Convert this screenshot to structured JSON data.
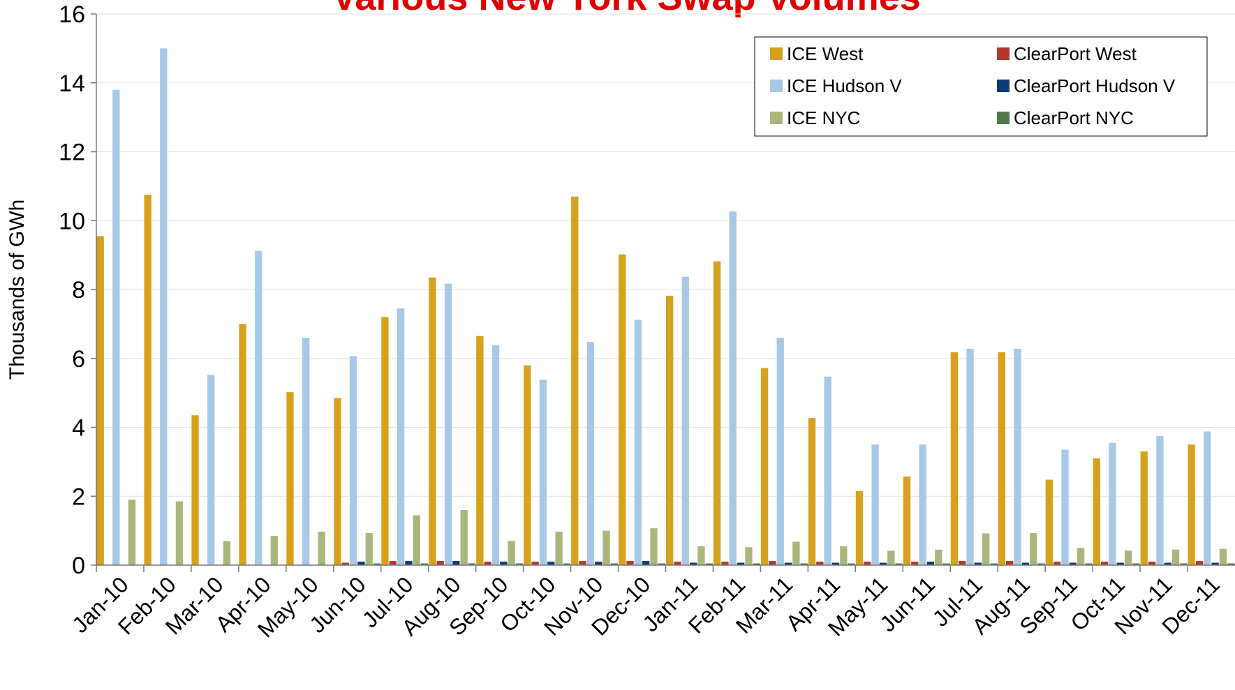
{
  "chart_data": {
    "type": "bar",
    "title": "Various New York Swap Volumes",
    "y_label": "Thousands of GWh",
    "categories": [
      "Jan-10",
      "Feb-10",
      "Mar-10",
      "Apr-10",
      "May-10",
      "Jun-10",
      "Jul-10",
      "Aug-10",
      "Sep-10",
      "Oct-10",
      "Nov-10",
      "Dec-10",
      "Jan-11",
      "Feb-11",
      "Mar-11",
      "Apr-11",
      "May-11",
      "Jun-11",
      "Jul-11",
      "Aug-11",
      "Sep-11",
      "Oct-11",
      "Nov-11",
      "Dec-11"
    ],
    "series": [
      {
        "name": "ICE West",
        "color": "#D6A11C",
        "values": [
          9.55,
          10.75,
          4.35,
          7.0,
          5.02,
          4.85,
          7.2,
          8.35,
          6.65,
          5.8,
          10.7,
          9.02,
          7.82,
          8.82,
          5.72,
          4.27,
          2.15,
          2.57,
          6.18,
          6.18,
          2.48,
          3.1,
          3.3,
          3.5
        ]
      },
      {
        "name": "ClearPort West",
        "color": "#B23A2A",
        "values": [
          0,
          0,
          0,
          0,
          0,
          0.07,
          0.12,
          0.12,
          0.1,
          0.1,
          0.12,
          0.12,
          0.1,
          0.1,
          0.12,
          0.1,
          0.1,
          0.1,
          0.12,
          0.12,
          0.1,
          0.1,
          0.1,
          0.12
        ]
      },
      {
        "name": "ICE Hudson V",
        "color": "#A8C9E6",
        "values": [
          13.8,
          15.0,
          5.52,
          9.12,
          6.6,
          6.07,
          7.45,
          8.17,
          6.38,
          5.38,
          6.48,
          7.12,
          8.37,
          10.27,
          6.6,
          5.47,
          3.5,
          3.5,
          6.28,
          6.28,
          3.35,
          3.55,
          3.75,
          3.88
        ]
      },
      {
        "name": "ClearPort Hudson V",
        "color": "#0B3C78",
        "values": [
          0,
          0,
          0,
          0,
          0,
          0.1,
          0.12,
          0.12,
          0.1,
          0.1,
          0.1,
          0.12,
          0.07,
          0.07,
          0.07,
          0.07,
          0.07,
          0.1,
          0.07,
          0.07,
          0.07,
          0.07,
          0.07,
          0.07
        ]
      },
      {
        "name": "ICE NYC",
        "color": "#AAB67C",
        "values": [
          1.9,
          1.85,
          0.7,
          0.85,
          0.97,
          0.93,
          1.45,
          1.6,
          0.7,
          0.97,
          1.0,
          1.07,
          0.55,
          0.52,
          0.68,
          0.55,
          0.42,
          0.45,
          0.92,
          0.93,
          0.5,
          0.42,
          0.45,
          0.47
        ]
      },
      {
        "name": "ClearPort NYC",
        "color": "#4D7B4D",
        "values": [
          0,
          0,
          0,
          0,
          0,
          0.05,
          0.05,
          0.05,
          0.05,
          0.05,
          0.05,
          0.05,
          0.05,
          0.05,
          0.05,
          0.05,
          0.05,
          0.05,
          0.05,
          0.05,
          0.05,
          0.05,
          0.05,
          0.05
        ]
      }
    ],
    "ylim": [
      0,
      16
    ],
    "yticks": [
      0,
      2,
      4,
      6,
      8,
      10,
      12,
      14,
      16
    ],
    "grid": true,
    "legend": "upper right"
  }
}
